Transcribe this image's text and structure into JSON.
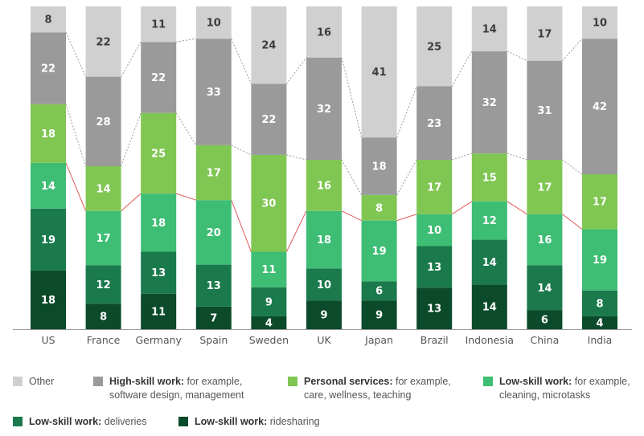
{
  "chart_data": {
    "type": "bar",
    "stacked": true,
    "categories": [
      "US",
      "France",
      "Germany",
      "Spain",
      "Sweden",
      "UK",
      "Japan",
      "Brazil",
      "Indonesia",
      "China",
      "India"
    ],
    "series": [
      {
        "name": "Low-skill work: ridesharing",
        "values": [
          18,
          8,
          11,
          7,
          4,
          9,
          9,
          13,
          14,
          6,
          4
        ],
        "color": "#0b4a2a"
      },
      {
        "name": "Low-skill work: deliveries",
        "values": [
          19,
          12,
          13,
          13,
          9,
          10,
          6,
          13,
          14,
          14,
          8
        ],
        "color": "#1a7a4c"
      },
      {
        "name": "Low-skill work: for example, cleaning, microtasks",
        "values": [
          14,
          17,
          18,
          20,
          11,
          18,
          19,
          10,
          12,
          16,
          19
        ],
        "color": "#3ebd74"
      },
      {
        "name": "Personal services: for example, care, wellness, teaching",
        "values": [
          18,
          14,
          25,
          17,
          30,
          16,
          8,
          17,
          15,
          17,
          17
        ],
        "color": "#80c653"
      },
      {
        "name": "High-skill work: for example, software design, management",
        "values": [
          22,
          28,
          22,
          33,
          22,
          32,
          18,
          23,
          32,
          31,
          42
        ],
        "color": "#9a9a9a"
      },
      {
        "name": "Other",
        "values": [
          8,
          22,
          11,
          10,
          24,
          16,
          41,
          25,
          14,
          17,
          10
        ],
        "color": "#d0d0d0"
      }
    ],
    "ylim": [
      0,
      100
    ]
  },
  "legend": [
    {
      "bold": "",
      "text": "Other",
      "line2": "",
      "color": "#d0d0d0"
    },
    {
      "bold": "High-skill work:",
      "text": " for example,",
      "line2": "software design, management",
      "color": "#9a9a9a"
    },
    {
      "bold": "Personal services:",
      "text": " for example,",
      "line2": "care, wellness, teaching",
      "color": "#80c653"
    },
    {
      "bold": "Low-skill work:",
      "text": " for example,",
      "line2": "cleaning, microtasks",
      "color": "#3ebd74"
    },
    {
      "bold": "Low-skill work:",
      "text": " deliveries",
      "line2": "",
      "color": "#1a7a4c"
    },
    {
      "bold": "Low-skill work:",
      "text": " ridesharing",
      "line2": "",
      "color": "#0b4a2a"
    }
  ]
}
